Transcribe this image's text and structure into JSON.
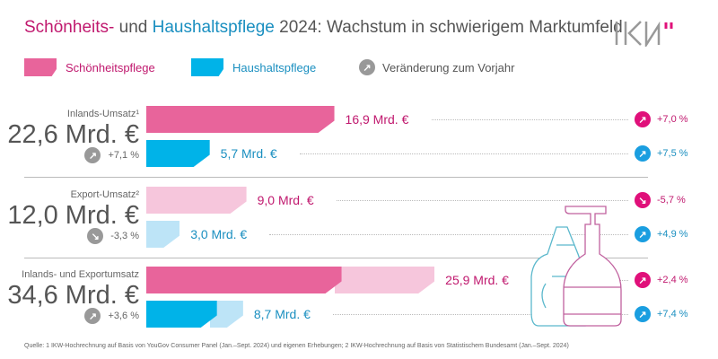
{
  "title": {
    "part1": "Schönheits-",
    "part2": " und ",
    "part3": "Haushaltspflege",
    "part4": " 2024: Wachstum in schwierigem Marktumfeld"
  },
  "logo": "IKW",
  "legend": {
    "beauty": "Schönheitspflege",
    "household": "Haushaltspflege",
    "change": "Veränderung zum Vorjahr"
  },
  "colors": {
    "beauty": "#e8649b",
    "beauty_light": "#f6c6dc",
    "household": "#00b3e8",
    "household_light": "#bde4f7",
    "beauty_text": "#c0186e",
    "household_text": "#1a8fc0",
    "beauty_circle": "#e0107a",
    "household_circle": "#1a9ee0",
    "neutral_circle": "#999999"
  },
  "chart_data": {
    "type": "bar",
    "unit": "Mrd. €",
    "groups": [
      {
        "label": "Inlands-Umsatz¹",
        "total": "22,6 Mrd. €",
        "change": "+7,1 %",
        "direction": "up",
        "bars": [
          {
            "series": "Schönheitspflege",
            "value": 16.9,
            "label": "16,9 Mrd. €",
            "change": "+7,0 %",
            "direction": "up",
            "segments": [
              {
                "value": 16.9,
                "shade": "dark"
              }
            ]
          },
          {
            "series": "Haushaltspflege",
            "value": 5.7,
            "label": "5,7 Mrd. €",
            "change": "+7,5 %",
            "direction": "up",
            "segments": [
              {
                "value": 5.7,
                "shade": "dark"
              }
            ]
          }
        ]
      },
      {
        "label": "Export-Umsatz²",
        "total": "12,0 Mrd. €",
        "change": "-3,3 %",
        "direction": "down",
        "bars": [
          {
            "series": "Schönheitspflege",
            "value": 9.0,
            "label": "9,0 Mrd. €",
            "change": "-5,7 %",
            "direction": "down",
            "segments": [
              {
                "value": 9.0,
                "shade": "light"
              }
            ]
          },
          {
            "series": "Haushaltspflege",
            "value": 3.0,
            "label": "3,0 Mrd. €",
            "change": "+4,9 %",
            "direction": "up",
            "segments": [
              {
                "value": 3.0,
                "shade": "light"
              }
            ]
          }
        ]
      },
      {
        "label": "Inlands- und Exportumsatz",
        "total": "34,6 Mrd. €",
        "change": "+3,6 %",
        "direction": "up",
        "bars": [
          {
            "series": "Schönheitspflege",
            "value": 25.9,
            "label": "25,9 Mrd. €",
            "change": "+2,4 %",
            "direction": "up",
            "segments": [
              {
                "value": 16.9,
                "shade": "dark"
              },
              {
                "value": 9.0,
                "shade": "light"
              }
            ]
          },
          {
            "series": "Haushaltspflege",
            "value": 8.7,
            "label": "8,7 Mrd. €",
            "change": "+7,4 %",
            "direction": "up",
            "segments": [
              {
                "value": 5.7,
                "shade": "dark"
              },
              {
                "value": 3.0,
                "shade": "light"
              }
            ]
          }
        ]
      }
    ]
  },
  "footer": "Quelle: 1 IKW-Hochrechnung auf Basis von YouGov Consumer Panel (Jan.–Sept. 2024) und eigenen Erhebungen; 2 IKW-Hochrechnung auf Basis von Statistischem Bundesamt (Jan.–Sept. 2024)"
}
